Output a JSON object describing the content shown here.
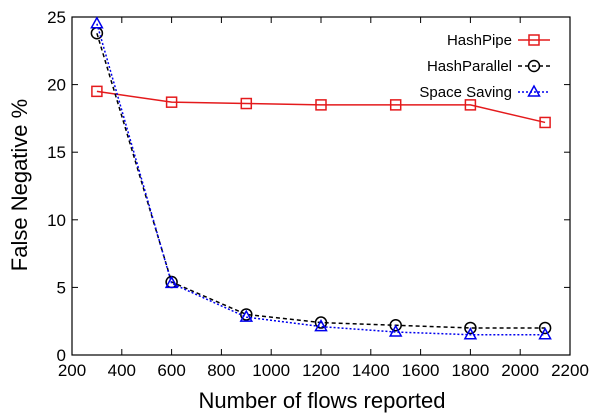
{
  "chart_data": {
    "type": "line",
    "title": "",
    "xlabel": "Number of flows reported",
    "ylabel": "False Negative %",
    "xlim": [
      200,
      2200
    ],
    "ylim": [
      0,
      25
    ],
    "xticks": [
      200,
      400,
      600,
      800,
      1000,
      1200,
      1400,
      1600,
      1800,
      2000,
      2200
    ],
    "yticks": [
      0,
      5,
      10,
      15,
      20,
      25
    ],
    "grid": false,
    "legend_position": "top-right",
    "series": [
      {
        "name": "HashPipe",
        "color": "#e41a1c",
        "line_style": "solid",
        "marker": "square",
        "x": [
          300,
          600,
          900,
          1200,
          1500,
          1800,
          2100
        ],
        "y": [
          19.5,
          18.7,
          18.6,
          18.5,
          18.5,
          18.5,
          17.2
        ]
      },
      {
        "name": "HashParallel",
        "color": "#000000",
        "line_style": "dashed",
        "marker": "circle",
        "x": [
          300,
          600,
          900,
          1200,
          1500,
          1800,
          2100
        ],
        "y": [
          23.8,
          5.4,
          3.0,
          2.4,
          2.2,
          2.0,
          2.0
        ]
      },
      {
        "name": "Space Saving",
        "color": "#0000ee",
        "line_style": "dotted",
        "marker": "triangle",
        "x": [
          300,
          600,
          900,
          1200,
          1500,
          1800,
          2100
        ],
        "y": [
          24.5,
          5.3,
          2.8,
          2.1,
          1.7,
          1.5,
          1.5
        ]
      }
    ]
  }
}
